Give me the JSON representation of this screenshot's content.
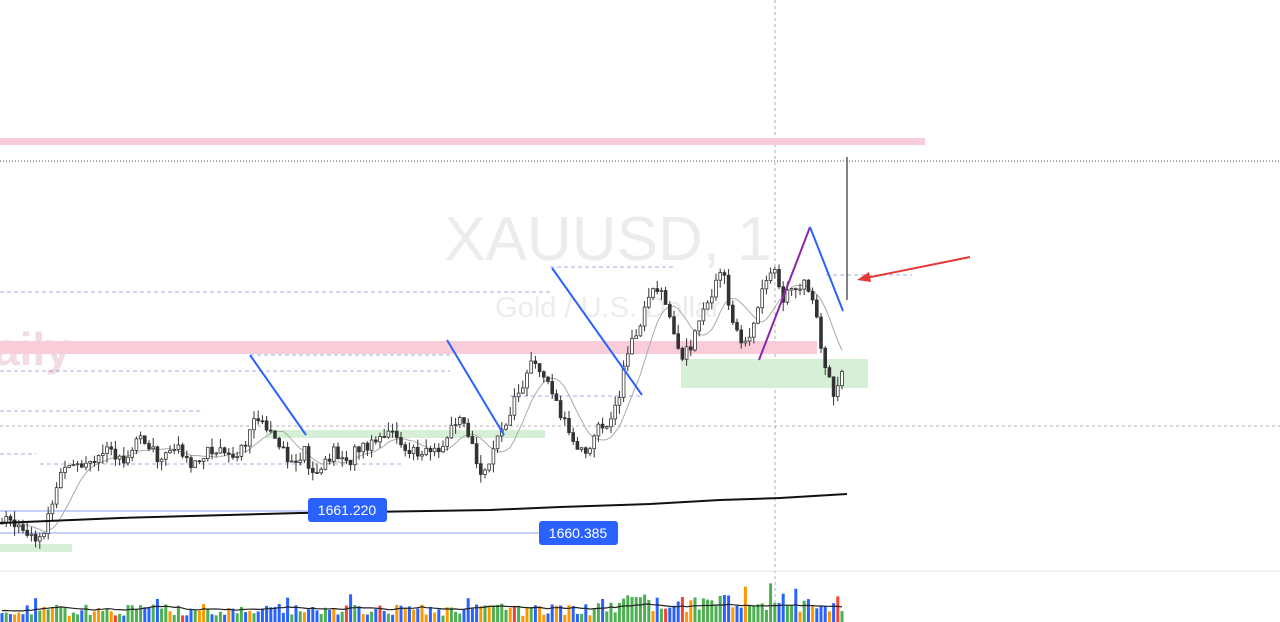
{
  "chart_data": {
    "type": "candlestick",
    "symbol_watermark": "XAUUSD, 1",
    "description_watermark": "Gold / U.S. Dollar",
    "partial_label": "aily",
    "price_labels": [
      {
        "value": "1661.220",
        "color": "#2962ff"
      },
      {
        "value": "1660.385",
        "color": "#2962ff"
      }
    ],
    "colors": {
      "up": "#555555",
      "down": "#333333",
      "resistance_zone": "#f8cdd9",
      "support_zone": "#d7efd7",
      "zigzag": "#2962ff",
      "zigzag_alt": "#8e24aa",
      "arrow": "#e53935",
      "ma_long": "#111111",
      "ma_short": "#aaaaaa",
      "vol_up": "#4caf50",
      "vol_down": "#2962ff",
      "vol_spike": "#ff9800",
      "vol_extreme": "#f44336"
    },
    "close_path": [
      1660.9,
      1661.0,
      1660.8,
      1660.6,
      1660.5,
      1661.7,
      1662.5,
      1662.6,
      1662.5,
      1662.7,
      1662.8,
      1662.6,
      1662.7,
      1663.2,
      1663.0,
      1662.6,
      1662.8,
      1662.9,
      1662.4,
      1662.7,
      1662.8,
      1662.9,
      1662.7,
      1662.9,
      1663.5,
      1663.6,
      1663.4,
      1662.9,
      1662.4,
      1662.8,
      1662.0,
      1662.6,
      1662.8,
      1662.4,
      1662.9,
      1663.0,
      1663.2,
      1663.4,
      1663.1,
      1662.9,
      1662.7,
      1662.8,
      1662.9,
      1663.3,
      1663.6,
      1663.0,
      1662.3,
      1662.6,
      1663.4,
      1664.1,
      1664.6,
      1665.2,
      1664.8,
      1664.1,
      1663.6,
      1663.0,
      1662.8,
      1663.3,
      1663.6,
      1664.0,
      1665.4,
      1666.1,
      1666.8,
      1667.3,
      1666.5,
      1665.3,
      1665.6,
      1666.2,
      1667.0,
      1667.8,
      1666.4,
      1665.6,
      1666.1,
      1667.3,
      1667.7,
      1666.9,
      1667.2,
      1667.3,
      1666.6,
      1665.0,
      1664.3,
      1665.4
    ]
  }
}
